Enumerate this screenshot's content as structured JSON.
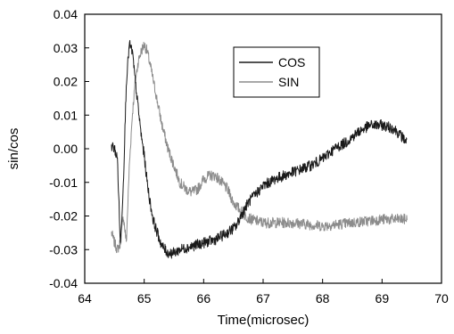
{
  "chart_data": {
    "type": "line",
    "title": "",
    "xlabel": "Time(microsec)",
    "ylabel": "sin/cos",
    "xlim": [
      64,
      70
    ],
    "ylim": [
      -0.04,
      0.04
    ],
    "xticks": [
      64,
      65,
      66,
      67,
      68,
      69,
      70
    ],
    "xtick_labels": [
      "64",
      "65",
      "66",
      "67",
      "68",
      "69",
      "70"
    ],
    "yticks": [
      -0.04,
      -0.03,
      -0.02,
      -0.01,
      0.0,
      0.01,
      0.02,
      0.03,
      0.04
    ],
    "ytick_labels": [
      "-0.04",
      "-0.03",
      "-0.02",
      "-0.01",
      "0.00",
      "0.01",
      "0.02",
      "0.03",
      "0.04"
    ],
    "grid": false,
    "legend_position": "top-center",
    "series": [
      {
        "name": "COS",
        "color": "#1a1a1a",
        "noise": 0.0016,
        "x": [
          64.45,
          64.5,
          64.55,
          64.6,
          64.65,
          64.7,
          64.75,
          64.8,
          64.85,
          64.9,
          64.95,
          65.0,
          65.05,
          65.1,
          65.15,
          65.2,
          65.3,
          65.4,
          65.5,
          65.6,
          65.8,
          66.0,
          66.2,
          66.4,
          66.55,
          66.65,
          66.75,
          66.9,
          67.0,
          67.2,
          67.5,
          67.8,
          68.0,
          68.2,
          68.4,
          68.6,
          68.8,
          69.0,
          69.2,
          69.42
        ],
        "y": [
          0.001,
          0.0,
          -0.003,
          -0.029,
          -0.01,
          0.02,
          0.031,
          0.029,
          0.02,
          0.012,
          0.004,
          -0.002,
          -0.01,
          -0.016,
          -0.021,
          -0.024,
          -0.029,
          -0.031,
          -0.031,
          -0.03,
          -0.029,
          -0.028,
          -0.027,
          -0.025,
          -0.023,
          -0.019,
          -0.016,
          -0.013,
          -0.011,
          -0.009,
          -0.007,
          -0.005,
          -0.003,
          0.0,
          0.002,
          0.005,
          0.007,
          0.007,
          0.006,
          0.002
        ]
      },
      {
        "name": "SIN",
        "color": "#8c8c8c",
        "noise": 0.0016,
        "x": [
          64.45,
          64.5,
          64.55,
          64.6,
          64.65,
          64.7,
          64.75,
          64.8,
          64.85,
          64.9,
          64.95,
          65.0,
          65.05,
          65.1,
          65.2,
          65.3,
          65.4,
          65.5,
          65.6,
          65.7,
          65.8,
          65.9,
          66.0,
          66.1,
          66.2,
          66.3,
          66.4,
          66.5,
          66.6,
          66.7,
          66.8,
          67.0,
          67.5,
          68.0,
          68.5,
          69.0,
          69.42
        ],
        "y": [
          -0.025,
          -0.028,
          -0.03,
          -0.028,
          -0.02,
          -0.028,
          -0.005,
          0.01,
          0.02,
          0.026,
          0.029,
          0.031,
          0.029,
          0.025,
          0.016,
          0.007,
          0.0,
          -0.005,
          -0.01,
          -0.012,
          -0.013,
          -0.012,
          -0.009,
          -0.008,
          -0.008,
          -0.01,
          -0.012,
          -0.016,
          -0.018,
          -0.02,
          -0.021,
          -0.022,
          -0.022,
          -0.023,
          -0.022,
          -0.021,
          -0.021
        ]
      }
    ]
  }
}
